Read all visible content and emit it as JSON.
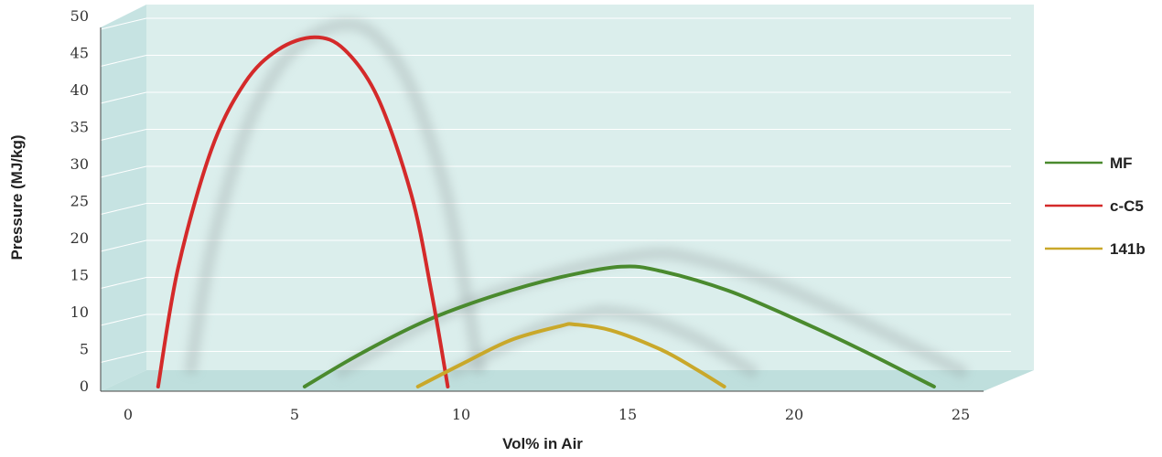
{
  "chart_data": {
    "type": "line",
    "title": "",
    "xlabel": "Vol% in Air",
    "ylabel": "Pressure (MJ/kg)",
    "xlim": [
      0,
      25
    ],
    "ylim": [
      0,
      50
    ],
    "xticks": [
      0,
      5,
      10,
      15,
      20,
      25
    ],
    "yticks": [
      0,
      5,
      10,
      15,
      20,
      25,
      30,
      35,
      40,
      45,
      50
    ],
    "grid": true,
    "legend_position": "right",
    "series": [
      {
        "name": "MF",
        "color": "#4a8a2e",
        "points": [
          [
            5.3,
            0
          ],
          [
            7,
            4.5
          ],
          [
            9,
            9
          ],
          [
            11,
            12.3
          ],
          [
            13,
            14.8
          ],
          [
            14.8,
            16.2
          ],
          [
            16,
            15.6
          ],
          [
            18,
            13
          ],
          [
            20,
            9.2
          ],
          [
            22,
            5
          ],
          [
            24.2,
            0
          ]
        ]
      },
      {
        "name": "c-C5",
        "color": "#d42a2a",
        "points": [
          [
            0.9,
            0
          ],
          [
            1.5,
            16
          ],
          [
            2.5,
            32
          ],
          [
            3.5,
            41
          ],
          [
            4.5,
            45.5
          ],
          [
            5.6,
            47.2
          ],
          [
            6.5,
            45.5
          ],
          [
            7.5,
            39
          ],
          [
            8.5,
            26
          ],
          [
            9.1,
            13
          ],
          [
            9.6,
            0
          ]
        ]
      },
      {
        "name": "141b",
        "color": "#c9a82a",
        "points": [
          [
            8.7,
            0
          ],
          [
            10,
            3
          ],
          [
            11.5,
            6.3
          ],
          [
            13,
            8.2
          ],
          [
            13.4,
            8.4
          ],
          [
            14.5,
            7.6
          ],
          [
            16,
            5
          ],
          [
            17,
            2.5
          ],
          [
            17.9,
            0
          ]
        ]
      }
    ]
  }
}
